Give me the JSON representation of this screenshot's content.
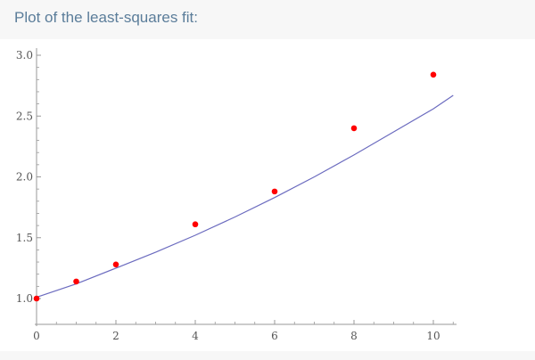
{
  "header": {
    "title": "Plot of the least-squares fit:"
  },
  "chart_data": {
    "type": "scatter",
    "title": "",
    "xlabel": "",
    "ylabel": "",
    "xlim": [
      0,
      10.5
    ],
    "ylim": [
      1.0,
      3.0
    ],
    "x_ticks": [
      0,
      2,
      4,
      6,
      8,
      10
    ],
    "y_ticks": [
      1.0,
      1.5,
      2.0,
      2.5,
      3.0
    ],
    "x_tick_labels": [
      "0",
      "2",
      "4",
      "6",
      "8",
      "10"
    ],
    "y_tick_labels": [
      "1.0",
      "1.5",
      "2.0",
      "2.5",
      "3.0"
    ],
    "grid": false,
    "series": [
      {
        "kind": "points",
        "color": "#ff0000",
        "x": [
          0,
          1,
          2,
          4,
          6,
          8,
          10
        ],
        "y": [
          1.0,
          1.14,
          1.28,
          1.61,
          1.88,
          2.4,
          2.84
        ]
      },
      {
        "kind": "fit-curve",
        "color": "#6b6bbf",
        "x": [
          0,
          1,
          2,
          3,
          4,
          5,
          6,
          7,
          8,
          9,
          10,
          10.5
        ],
        "y": [
          1.01,
          1.12,
          1.25,
          1.38,
          1.52,
          1.67,
          1.83,
          2.0,
          2.18,
          2.37,
          2.56,
          2.67
        ]
      }
    ],
    "colors": {
      "axis": "#999999",
      "tick_label": "#555555"
    }
  }
}
